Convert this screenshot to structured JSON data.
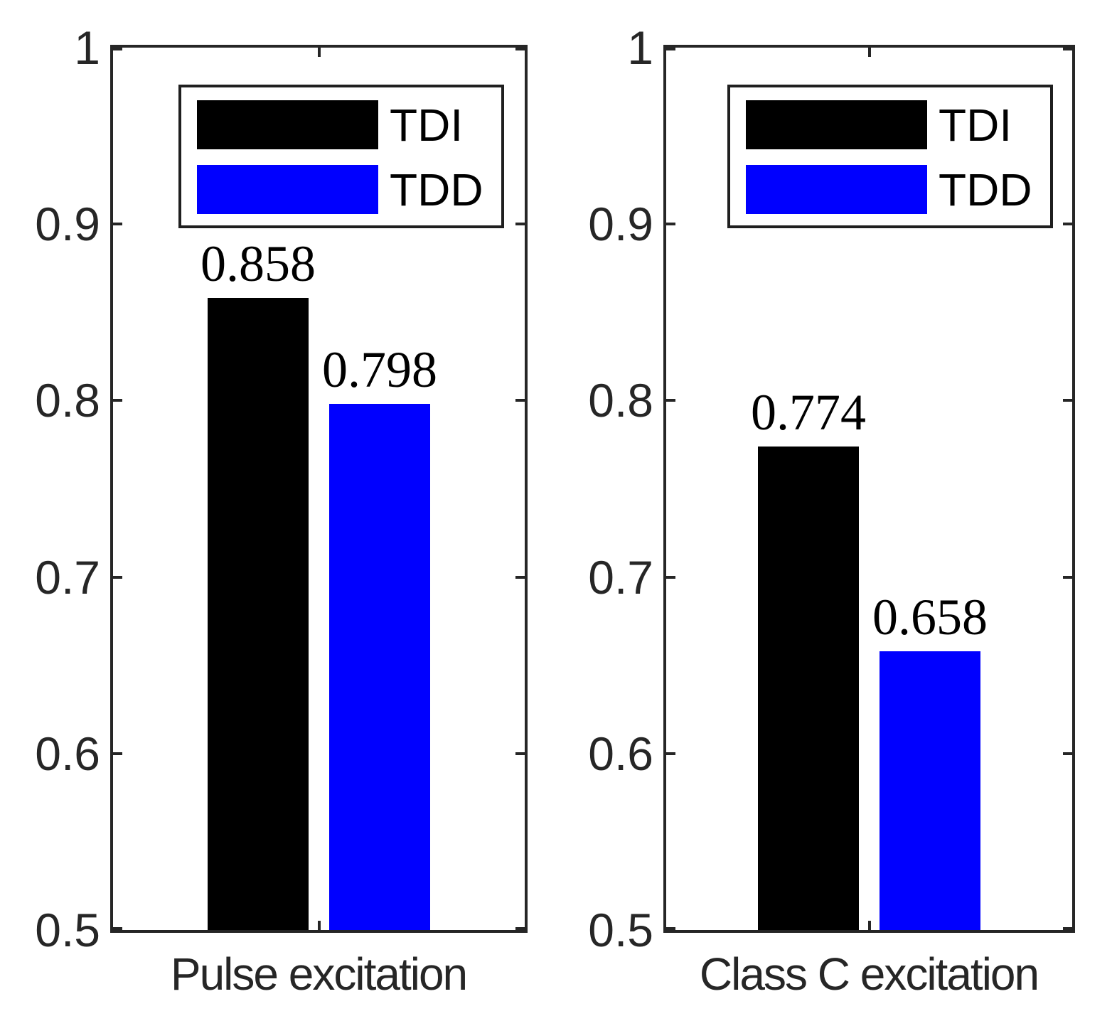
{
  "figure": {
    "background": "#ffffff",
    "axis_color": "#262626",
    "value_label_color": "#000000"
  },
  "legend": {
    "items": [
      {
        "label": "TDI",
        "color": "#000000"
      },
      {
        "label": "TDD",
        "color": "#0000ff"
      }
    ]
  },
  "chart_data": [
    {
      "type": "bar",
      "title": "",
      "xlabel": "Pulse excitation",
      "ylabel": "",
      "categories": [
        "Pulse excitation"
      ],
      "series": [
        {
          "name": "TDI",
          "color": "#000000",
          "values": [
            0.858
          ]
        },
        {
          "name": "TDD",
          "color": "#0000ff",
          "values": [
            0.798
          ]
        }
      ],
      "bar_labels": [
        "0.858",
        "0.798"
      ],
      "ylim": [
        0.5,
        1
      ],
      "yticks": [
        {
          "value": 1,
          "label": "1"
        },
        {
          "value": 0.9,
          "label": "0.9"
        },
        {
          "value": 0.8,
          "label": "0.8"
        },
        {
          "value": 0.7,
          "label": "0.7"
        },
        {
          "value": 0.6,
          "label": "0.6"
        },
        {
          "value": 0.5,
          "label": "0.5"
        }
      ],
      "grid": false,
      "legend_entries": [
        "TDI",
        "TDD"
      ],
      "legend_position": "north-inside"
    },
    {
      "type": "bar",
      "title": "",
      "xlabel": "Class C excitation",
      "ylabel": "",
      "categories": [
        "Class C excitation"
      ],
      "series": [
        {
          "name": "TDI",
          "color": "#000000",
          "values": [
            0.774
          ]
        },
        {
          "name": "TDD",
          "color": "#0000ff",
          "values": [
            0.658
          ]
        }
      ],
      "bar_labels": [
        "0.774",
        "0.658"
      ],
      "ylim": [
        0.5,
        1
      ],
      "yticks": [
        {
          "value": 1,
          "label": "1"
        },
        {
          "value": 0.9,
          "label": "0.9"
        },
        {
          "value": 0.8,
          "label": "0.8"
        },
        {
          "value": 0.7,
          "label": "0.7"
        },
        {
          "value": 0.6,
          "label": "0.6"
        },
        {
          "value": 0.5,
          "label": "0.5"
        }
      ],
      "grid": false,
      "legend_entries": [
        "TDI",
        "TDD"
      ],
      "legend_position": "north-inside"
    }
  ]
}
